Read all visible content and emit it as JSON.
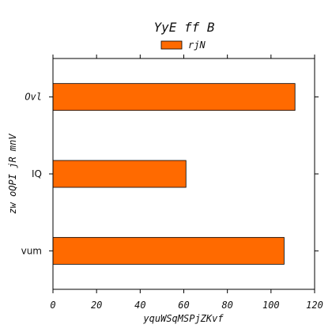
{
  "chart_data": {
    "type": "bar",
    "orientation": "horizontal",
    "title": "YyE ff B",
    "xlabel": "yquWSqMSPjZKvf",
    "ylabel": "zw oQPI jR mnV",
    "categories": [
      "Ovl",
      "IQ",
      "vum"
    ],
    "series": [
      {
        "name": "rjN",
        "values": [
          111,
          61,
          106
        ],
        "color": "#ff6a00"
      }
    ],
    "xlim": [
      0,
      120
    ],
    "xticks": [
      "0",
      "20",
      "40",
      "60",
      "80",
      "100",
      "120"
    ],
    "grid": false,
    "legend_position": "top-center"
  }
}
